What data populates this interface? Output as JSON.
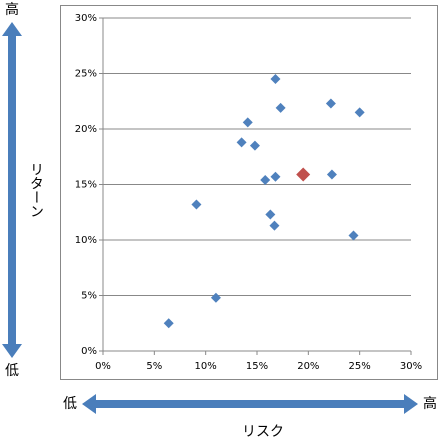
{
  "chart_data": {
    "type": "scatter",
    "xlabel": "リスク",
    "ylabel": "リターン",
    "x_low": "低",
    "x_high": "高",
    "y_low": "低",
    "y_high": "高",
    "series": [
      {
        "color": "#4f81bd",
        "marker_size": 5,
        "x": [
          16.8,
          22.2,
          25.0,
          17.3,
          14.1,
          13.5,
          14.8,
          15.8,
          16.8,
          22.3,
          9.1,
          16.3,
          16.7,
          24.4,
          11.0,
          6.4
        ],
        "values": [
          24.5,
          22.3,
          21.5,
          21.9,
          20.6,
          18.8,
          18.5,
          15.4,
          15.7,
          15.9,
          13.2,
          12.3,
          11.3,
          10.4,
          4.8,
          2.5
        ]
      },
      {
        "color": "#c0504d",
        "marker_size": 7,
        "x": [
          19.5
        ],
        "values": [
          15.9
        ]
      }
    ],
    "xlim": [
      0,
      30
    ],
    "ylim": [
      0,
      30
    ],
    "xticks": [
      {
        "value": 0,
        "label": "0%"
      },
      {
        "value": 5,
        "label": "5%"
      },
      {
        "value": 10,
        "label": "10%"
      },
      {
        "value": 15,
        "label": "15%"
      },
      {
        "value": 20,
        "label": "20%"
      },
      {
        "value": 25,
        "label": "25%"
      },
      {
        "value": 30,
        "label": "30%"
      }
    ],
    "yticks": [
      {
        "value": 0,
        "label": "0%"
      },
      {
        "value": 5,
        "label": "5%"
      },
      {
        "value": 10,
        "label": "10%"
      },
      {
        "value": 15,
        "label": "15%"
      },
      {
        "value": 20,
        "label": "20%"
      },
      {
        "value": 25,
        "label": "25%"
      },
      {
        "value": 30,
        "label": "30%"
      }
    ],
    "grid": true
  }
}
